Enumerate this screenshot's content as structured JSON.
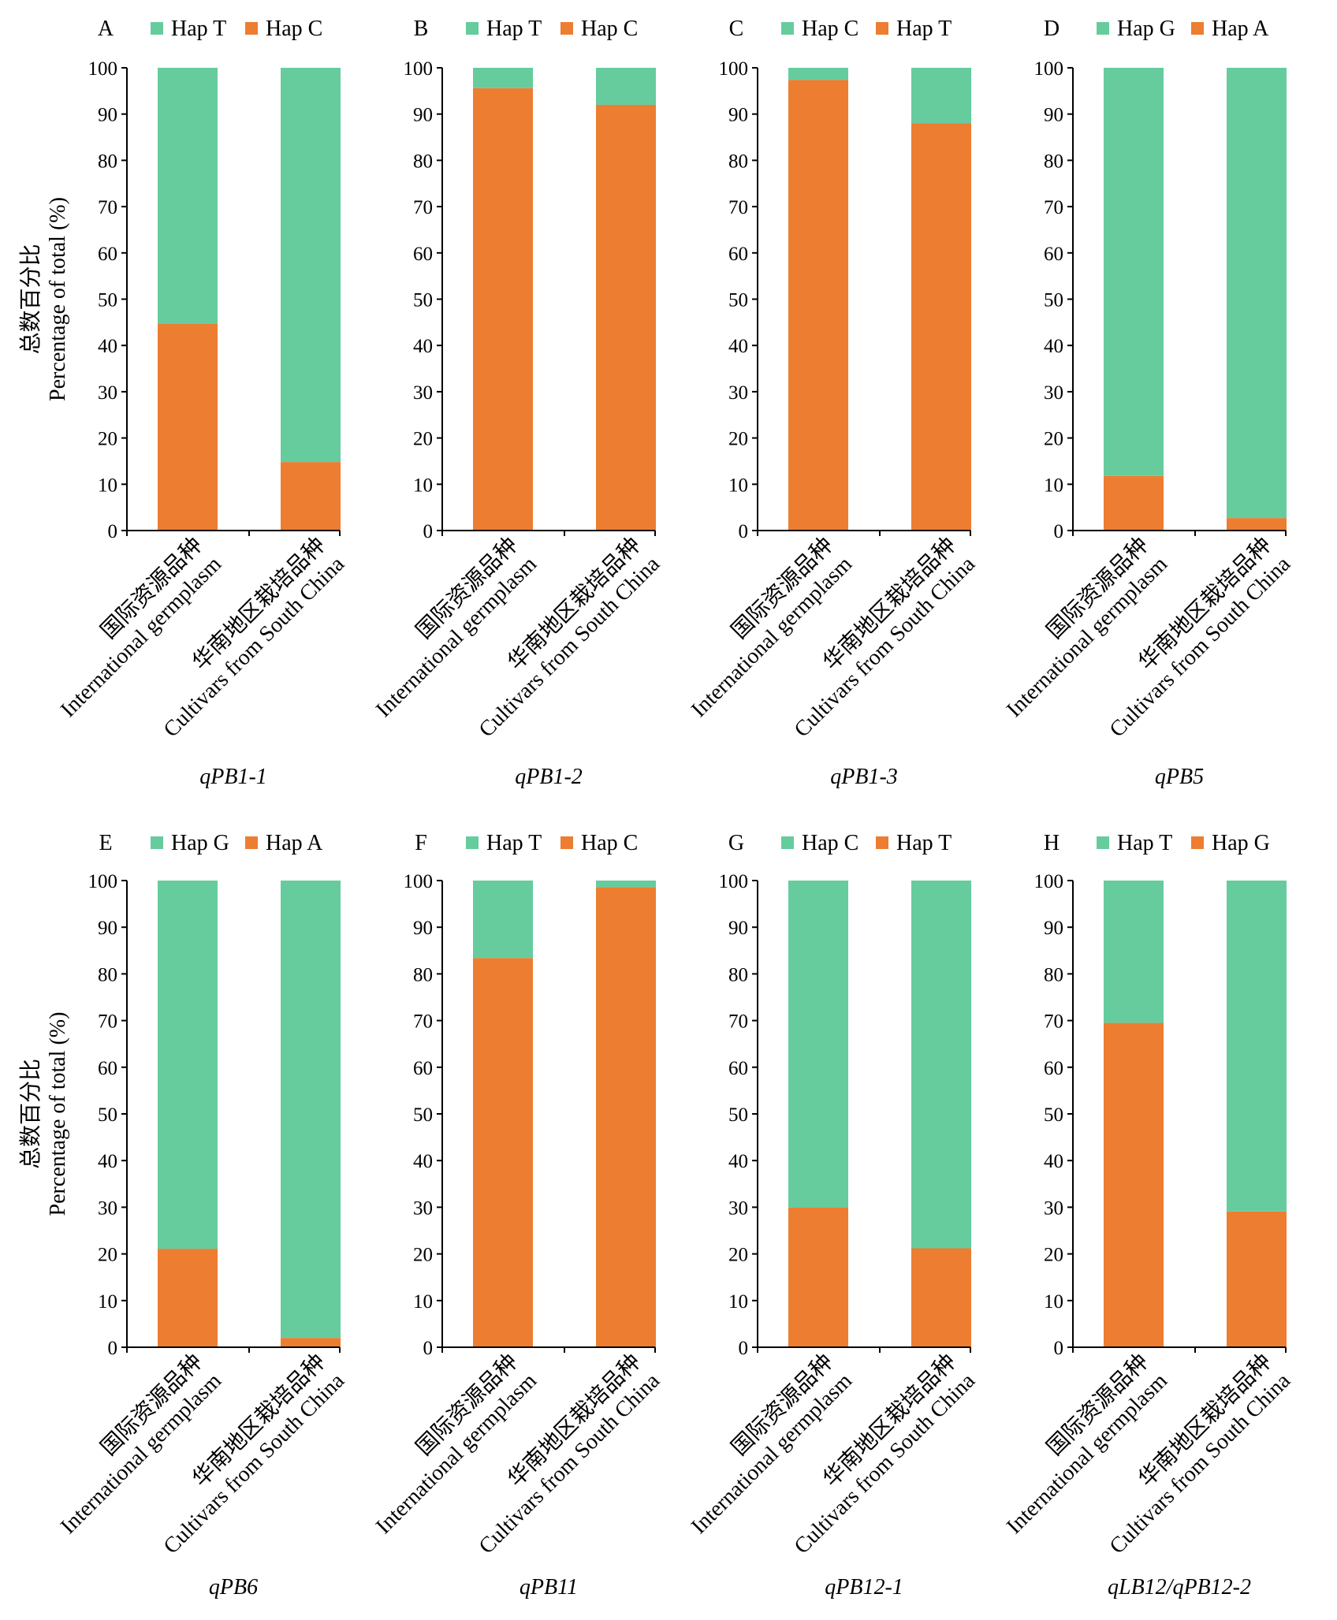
{
  "y_axis_label_cn": "总数百分比",
  "y_axis_label_en": "Percentage of total (%)",
  "categories": [
    [
      "国际资源品种",
      "International germplasm"
    ],
    [
      "华南地区栽培品种",
      "Cultivars from South China"
    ]
  ],
  "colors": {
    "green": "#66CC9E",
    "orange": "#ED7D31"
  },
  "chart_data": [
    {
      "type": "bar",
      "stacked": true,
      "panel": "A",
      "gene": "qPB1-1",
      "categories": [
        "International germplasm",
        "Cultivars from South China"
      ],
      "ylim": [
        0,
        100
      ],
      "yticks": [
        0,
        10,
        20,
        30,
        40,
        50,
        60,
        70,
        80,
        90,
        100
      ],
      "legend": "top",
      "series": [
        {
          "name": "Hap T",
          "color": "green",
          "values": [
            55.3,
            85.2
          ]
        },
        {
          "name": "Hap C",
          "color": "orange",
          "values": [
            44.7,
            14.8
          ]
        }
      ]
    },
    {
      "type": "bar",
      "stacked": true,
      "panel": "B",
      "gene": "qPB1-2",
      "categories": [
        "International germplasm",
        "Cultivars from South China"
      ],
      "ylim": [
        0,
        100
      ],
      "yticks": [
        0,
        10,
        20,
        30,
        40,
        50,
        60,
        70,
        80,
        90,
        100
      ],
      "legend": "top",
      "series": [
        {
          "name": "Hap T",
          "color": "green",
          "values": [
            4.4,
            8.0
          ]
        },
        {
          "name": "Hap C",
          "color": "orange",
          "values": [
            95.6,
            92.0
          ]
        }
      ]
    },
    {
      "type": "bar",
      "stacked": true,
      "panel": "C",
      "gene": "qPB1-3",
      "categories": [
        "International germplasm",
        "Cultivars from South China"
      ],
      "ylim": [
        0,
        100
      ],
      "yticks": [
        0,
        10,
        20,
        30,
        40,
        50,
        60,
        70,
        80,
        90,
        100
      ],
      "legend": "top",
      "series": [
        {
          "name": "Hap C",
          "color": "green",
          "values": [
            2.6,
            12.0
          ]
        },
        {
          "name": "Hap T",
          "color": "orange",
          "values": [
            97.4,
            88.0
          ]
        }
      ]
    },
    {
      "type": "bar",
      "stacked": true,
      "panel": "D",
      "gene": "qPB5",
      "categories": [
        "International germplasm",
        "Cultivars from South China"
      ],
      "ylim": [
        0,
        100
      ],
      "yticks": [
        0,
        10,
        20,
        30,
        40,
        50,
        60,
        70,
        80,
        90,
        100
      ],
      "legend": "top",
      "series": [
        {
          "name": "Hap G",
          "color": "green",
          "values": [
            88.2,
            97.3
          ]
        },
        {
          "name": "Hap A",
          "color": "orange",
          "values": [
            11.8,
            2.7
          ]
        }
      ]
    },
    {
      "type": "bar",
      "stacked": true,
      "panel": "E",
      "gene": "qPB6",
      "categories": [
        "International germplasm",
        "Cultivars from South China"
      ],
      "ylim": [
        0,
        100
      ],
      "yticks": [
        0,
        10,
        20,
        30,
        40,
        50,
        60,
        70,
        80,
        90,
        100
      ],
      "legend": "top",
      "series": [
        {
          "name": "Hap G",
          "color": "green",
          "values": [
            78.9,
            98.0
          ]
        },
        {
          "name": "Hap A",
          "color": "orange",
          "values": [
            21.1,
            2.0
          ]
        }
      ]
    },
    {
      "type": "bar",
      "stacked": true,
      "panel": "F",
      "gene": "qPB11",
      "categories": [
        "International germplasm",
        "Cultivars from South China"
      ],
      "ylim": [
        0,
        100
      ],
      "yticks": [
        0,
        10,
        20,
        30,
        40,
        50,
        60,
        70,
        80,
        90,
        100
      ],
      "legend": "top",
      "series": [
        {
          "name": "Hap T",
          "color": "green",
          "values": [
            16.6,
            1.4
          ]
        },
        {
          "name": "Hap C",
          "color": "orange",
          "values": [
            83.4,
            98.6
          ]
        }
      ]
    },
    {
      "type": "bar",
      "stacked": true,
      "panel": "G",
      "gene": "qPB12-1",
      "categories": [
        "International germplasm",
        "Cultivars from South China"
      ],
      "ylim": [
        0,
        100
      ],
      "yticks": [
        0,
        10,
        20,
        30,
        40,
        50,
        60,
        70,
        80,
        90,
        100
      ],
      "legend": "top",
      "series": [
        {
          "name": "Hap C",
          "color": "green",
          "values": [
            70.1,
            78.8
          ]
        },
        {
          "name": "Hap T",
          "color": "orange",
          "values": [
            29.9,
            21.2
          ]
        }
      ]
    },
    {
      "type": "bar",
      "stacked": true,
      "panel": "H",
      "gene": "qLB12/qPB12-2",
      "categories": [
        "International germplasm",
        "Cultivars from South China"
      ],
      "ylim": [
        0,
        100
      ],
      "yticks": [
        0,
        10,
        20,
        30,
        40,
        50,
        60,
        70,
        80,
        90,
        100
      ],
      "legend": "top",
      "series": [
        {
          "name": "Hap T",
          "color": "green",
          "values": [
            30.5,
            70.9
          ]
        },
        {
          "name": "Hap G",
          "color": "orange",
          "values": [
            69.5,
            29.1
          ]
        }
      ]
    }
  ]
}
